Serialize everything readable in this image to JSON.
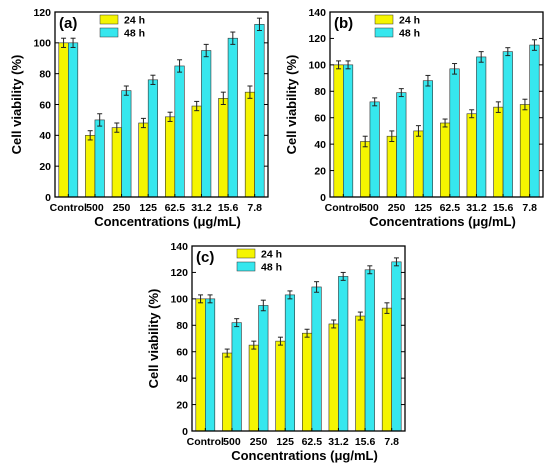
{
  "colors": {
    "h24": "#f5f500",
    "h48": "#36e7ee",
    "axis": "#000000",
    "error": "#222222"
  },
  "chart_data": [
    {
      "type": "bar",
      "panel_label": "(a)",
      "categories": [
        "Control",
        "500",
        "250",
        "125",
        "62.5",
        "31.2",
        "15.6",
        "7.8"
      ],
      "xlabel": "Concentrations (μg/mL)",
      "ylabel": "Cell viability (%)",
      "ylim": [
        0,
        120
      ],
      "yticks": [
        0,
        20,
        40,
        60,
        80,
        100,
        120
      ],
      "legend_position": "top-center",
      "grid": false,
      "series": [
        {
          "name": "24 h",
          "color": "#f5f500",
          "values": [
            100,
            40,
            45,
            48,
            52,
            59,
            64,
            68
          ],
          "errors": [
            3,
            3,
            3,
            3,
            3,
            3,
            4,
            4
          ]
        },
        {
          "name": "48 h",
          "color": "#36e7ee",
          "values": [
            100,
            50,
            69,
            76,
            85,
            95,
            103,
            112
          ],
          "errors": [
            3,
            4,
            3,
            3,
            4,
            4,
            4,
            4
          ]
        }
      ]
    },
    {
      "type": "bar",
      "panel_label": "(b)",
      "categories": [
        "Control",
        "500",
        "250",
        "125",
        "62.5",
        "31.2",
        "15.6",
        "7.8"
      ],
      "xlabel": "Concentrations (μg/mL)",
      "ylabel": "Cell viability (%)",
      "ylim": [
        0,
        140
      ],
      "yticks": [
        0,
        20,
        40,
        60,
        80,
        100,
        120,
        140
      ],
      "legend_position": "top-center",
      "grid": false,
      "series": [
        {
          "name": "24 h",
          "color": "#f5f500",
          "values": [
            100,
            42,
            46,
            50,
            56,
            63,
            68,
            70
          ],
          "errors": [
            3,
            4,
            4,
            4,
            3,
            3,
            4,
            4
          ]
        },
        {
          "name": "48 h",
          "color": "#36e7ee",
          "values": [
            100,
            72,
            79,
            88,
            97,
            106,
            110,
            115
          ],
          "errors": [
            3,
            3,
            3,
            4,
            4,
            4,
            3,
            4
          ]
        }
      ]
    },
    {
      "type": "bar",
      "panel_label": "(c)",
      "categories": [
        "Control",
        "500",
        "250",
        "125",
        "62.5",
        "31.2",
        "15.6",
        "7.8"
      ],
      "xlabel": "Concentrations (μg/mL)",
      "ylabel": "Cell viability (%)",
      "ylim": [
        0,
        140
      ],
      "yticks": [
        0,
        20,
        40,
        60,
        80,
        100,
        120,
        140
      ],
      "legend_position": "top-center",
      "grid": false,
      "series": [
        {
          "name": "24 h",
          "color": "#f5f500",
          "values": [
            100,
            59,
            65,
            68,
            74,
            81,
            87,
            93
          ],
          "errors": [
            3,
            3,
            3,
            3,
            3,
            3,
            3,
            4
          ]
        },
        {
          "name": "48 h",
          "color": "#36e7ee",
          "values": [
            100,
            82,
            95,
            103,
            109,
            117,
            122,
            128
          ],
          "errors": [
            3,
            3,
            4,
            3,
            4,
            3,
            3,
            3
          ]
        }
      ]
    }
  ]
}
